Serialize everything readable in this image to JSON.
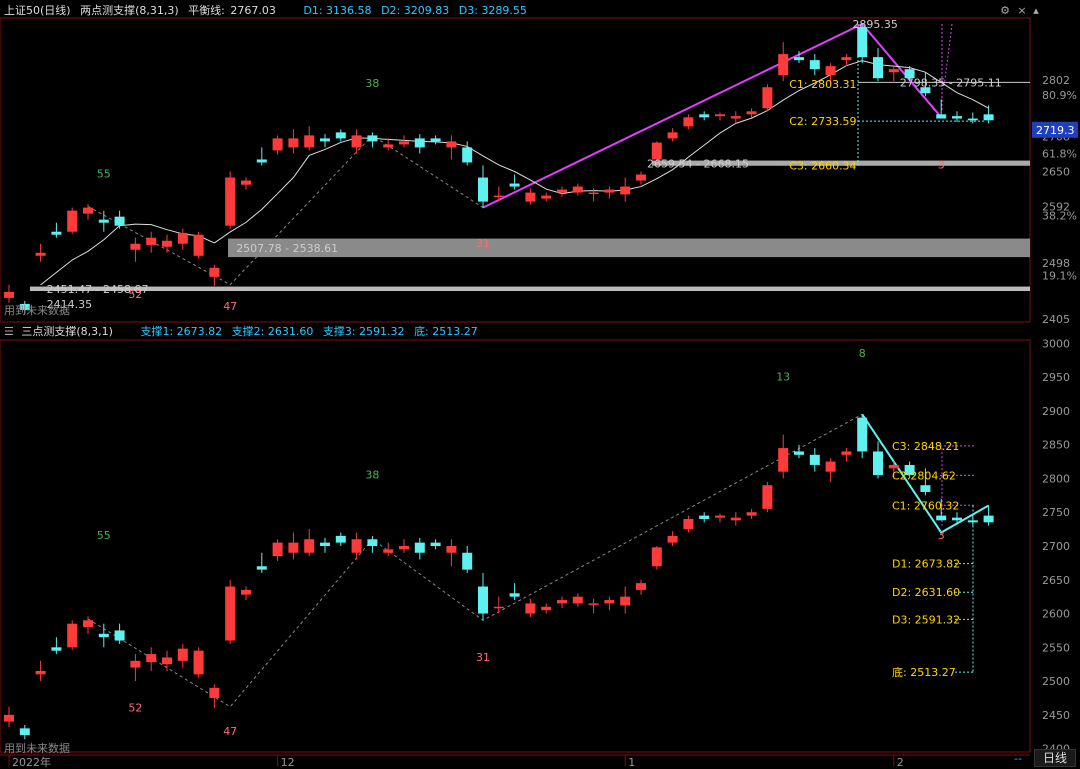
{
  "top_panel": {
    "title": "上证50(日线)",
    "indicator": "两点测支撑(8,31,3)",
    "balance_label": "平衡线:",
    "balance_value": "2767.03",
    "d1": "D1: 3136.58",
    "d2": "D2: 3209.83",
    "d3": "D3: 3289.55",
    "price_tag": "2719.3",
    "future_note": "用到未来数据",
    "axis_labels": [
      {
        "v": 2802,
        "text": "2802"
      },
      {
        "v": 2708,
        "text": "2708"
      },
      {
        "v": 2650,
        "text": "2650"
      },
      {
        "v": 2592,
        "text": "2592"
      },
      {
        "v": 2498,
        "text": "2498"
      },
      {
        "v": 2405,
        "text": "2405"
      }
    ],
    "fib_labels": [
      {
        "v": 2777,
        "text": "80.9%"
      },
      {
        "v": 2680,
        "text": "61.8%"
      },
      {
        "v": 2577,
        "text": "38.2%"
      },
      {
        "v": 2477,
        "text": "19.1%"
      }
    ],
    "annotations": [
      {
        "v": 2895.35,
        "i": 53,
        "text": "2895.35",
        "color": "#ccc"
      },
      {
        "v": 2798,
        "i": 56,
        "text": "2798.35 - 2795.11",
        "color": "#ccc"
      },
      {
        "v": 2795,
        "i": 49,
        "text": "C1: 2803.31",
        "color": "#ffd400"
      },
      {
        "v": 2733.59,
        "i": 49,
        "text": "C2: 2733.59",
        "color": "#ffd400"
      },
      {
        "v": 2660.34,
        "i": 49,
        "text": "C3: 2660.34",
        "color": "#ffd400"
      },
      {
        "v": 2663,
        "i": 40,
        "text": "2659.54 - 2668.15",
        "color": "#ccc"
      },
      {
        "v": 2523,
        "i": 14,
        "text": "2507.78 - 2538.61",
        "color": "#ccc"
      },
      {
        "v": 2455,
        "i": 2,
        "text": "2451.47 - 2458.87",
        "color": "#ccc"
      },
      {
        "v": 2430,
        "i": 2,
        "text": "2414.35",
        "color": "#ccc"
      }
    ],
    "counts": [
      {
        "i": 23,
        "v": 2790,
        "text": "38",
        "color": "#4caf50"
      },
      {
        "i": 6,
        "v": 2640,
        "text": "55",
        "color": "#4caf50"
      },
      {
        "i": 8,
        "v": 2440,
        "text": "52",
        "color": "#ff6b6b"
      },
      {
        "i": 14,
        "v": 2420,
        "text": "47",
        "color": "#ff6b6b"
      },
      {
        "i": 30,
        "v": 2525,
        "text": "31",
        "color": "#ff6b6b"
      },
      {
        "i": 59,
        "v": 2655,
        "text": "3",
        "color": "#ff6b6b"
      }
    ]
  },
  "bottom_panel": {
    "indicator": "三点测支撑(8,3,1)",
    "s1": "支撑1: 2673.82",
    "s2": "支撑2: 2631.60",
    "s3": "支撑3: 2591.32",
    "bottom": "底: 2513.27",
    "future_note": "用到未来数据",
    "axis_labels": [
      {
        "v": 3000,
        "text": "3000"
      },
      {
        "v": 2950,
        "text": "2950"
      },
      {
        "v": 2900,
        "text": "2900"
      },
      {
        "v": 2850,
        "text": "2850"
      },
      {
        "v": 2800,
        "text": "2800"
      },
      {
        "v": 2750,
        "text": "2750"
      },
      {
        "v": 2700,
        "text": "2700"
      },
      {
        "v": 2650,
        "text": "2650"
      },
      {
        "v": 2600,
        "text": "2600"
      },
      {
        "v": 2550,
        "text": "2550"
      },
      {
        "v": 2500,
        "text": "2500"
      },
      {
        "v": 2450,
        "text": "2450"
      },
      {
        "v": 2400,
        "text": "2400"
      }
    ],
    "annotations": [
      {
        "v": 2848.21,
        "text": "C3: 2848.21",
        "color": "#ffd400"
      },
      {
        "v": 2804.62,
        "text": "C2:2804.62",
        "color": "#ffd400"
      },
      {
        "v": 2760.32,
        "text": "C1: 2760.32",
        "color": "#ffd400"
      },
      {
        "v": 2673.82,
        "text": "D1: 2673.82",
        "color": "#ffd400"
      },
      {
        "v": 2631.6,
        "text": "D2: 2631.60",
        "color": "#ffd400"
      },
      {
        "v": 2591.32,
        "text": "D3: 2591.32",
        "color": "#ffd400"
      },
      {
        "v": 2513.27,
        "text": "底: 2513.27",
        "color": "#ffd400"
      }
    ],
    "counts": [
      {
        "i": 23,
        "v": 2800,
        "text": "38",
        "color": "#4caf50"
      },
      {
        "i": 6,
        "v": 2710,
        "text": "55",
        "color": "#4caf50"
      },
      {
        "i": 49,
        "v": 2945,
        "text": "13",
        "color": "#4caf50"
      },
      {
        "i": 54,
        "v": 2980,
        "text": "8",
        "color": "#4caf50"
      },
      {
        "i": 8,
        "v": 2455,
        "text": "52",
        "color": "#ff6b6b"
      },
      {
        "i": 14,
        "v": 2420,
        "text": "47",
        "color": "#ff6b6b"
      },
      {
        "i": 30,
        "v": 2530,
        "text": "31",
        "color": "#ff6b6b"
      },
      {
        "i": 59,
        "v": 2710,
        "text": "3",
        "color": "#ff6b6b"
      }
    ]
  },
  "time_axis": [
    {
      "i": 0,
      "text": "2022年"
    },
    {
      "i": 17,
      "text": "12"
    },
    {
      "i": 39,
      "text": "1"
    },
    {
      "i": 56,
      "text": "2"
    }
  ],
  "period_tab": "日线",
  "colors": {
    "up": "#ff3a3a",
    "down": "#5ff0f0",
    "ma": "#dddddd",
    "zigzag_top": "#e040fb",
    "zigzag_bottom": "#5ff0f0",
    "band": "#8a8a8a"
  },
  "candles": [
    {
      "o": 2440,
      "h": 2462,
      "l": 2432,
      "c": 2450
    },
    {
      "o": 2430,
      "h": 2435,
      "l": 2414,
      "c": 2420
    },
    {
      "o": 2510,
      "h": 2530,
      "l": 2500,
      "c": 2515
    },
    {
      "o": 2550,
      "h": 2565,
      "l": 2540,
      "c": 2545
    },
    {
      "o": 2550,
      "h": 2590,
      "l": 2546,
      "c": 2585
    },
    {
      "o": 2580,
      "h": 2596,
      "l": 2570,
      "c": 2590
    },
    {
      "o": 2570,
      "h": 2585,
      "l": 2550,
      "c": 2565
    },
    {
      "o": 2575,
      "h": 2585,
      "l": 2555,
      "c": 2560
    },
    {
      "o": 2520,
      "h": 2540,
      "l": 2500,
      "c": 2530
    },
    {
      "o": 2528,
      "h": 2550,
      "l": 2515,
      "c": 2540
    },
    {
      "o": 2525,
      "h": 2545,
      "l": 2515,
      "c": 2535
    },
    {
      "o": 2530,
      "h": 2555,
      "l": 2520,
      "c": 2548
    },
    {
      "o": 2510,
      "h": 2550,
      "l": 2505,
      "c": 2545
    },
    {
      "o": 2475,
      "h": 2495,
      "l": 2460,
      "c": 2490
    },
    {
      "o": 2560,
      "h": 2650,
      "l": 2555,
      "c": 2640
    },
    {
      "o": 2628,
      "h": 2640,
      "l": 2620,
      "c": 2635
    },
    {
      "o": 2670,
      "h": 2690,
      "l": 2660,
      "c": 2665
    },
    {
      "o": 2685,
      "h": 2710,
      "l": 2678,
      "c": 2705
    },
    {
      "o": 2690,
      "h": 2720,
      "l": 2680,
      "c": 2705
    },
    {
      "o": 2690,
      "h": 2725,
      "l": 2685,
      "c": 2710
    },
    {
      "o": 2705,
      "h": 2712,
      "l": 2690,
      "c": 2700
    },
    {
      "o": 2715,
      "h": 2720,
      "l": 2700,
      "c": 2705
    },
    {
      "o": 2690,
      "h": 2720,
      "l": 2680,
      "c": 2710
    },
    {
      "o": 2710,
      "h": 2715,
      "l": 2690,
      "c": 2700
    },
    {
      "o": 2690,
      "h": 2705,
      "l": 2685,
      "c": 2695
    },
    {
      "o": 2695,
      "h": 2710,
      "l": 2690,
      "c": 2700
    },
    {
      "o": 2705,
      "h": 2712,
      "l": 2680,
      "c": 2690
    },
    {
      "o": 2705,
      "h": 2710,
      "l": 2695,
      "c": 2700
    },
    {
      "o": 2690,
      "h": 2710,
      "l": 2670,
      "c": 2700
    },
    {
      "o": 2690,
      "h": 2700,
      "l": 2660,
      "c": 2665
    },
    {
      "o": 2640,
      "h": 2660,
      "l": 2590,
      "c": 2600
    },
    {
      "o": 2610,
      "h": 2625,
      "l": 2600,
      "c": 2610
    },
    {
      "o": 2630,
      "h": 2645,
      "l": 2620,
      "c": 2625
    },
    {
      "o": 2600,
      "h": 2622,
      "l": 2595,
      "c": 2615
    },
    {
      "o": 2605,
      "h": 2615,
      "l": 2600,
      "c": 2610
    },
    {
      "o": 2615,
      "h": 2625,
      "l": 2608,
      "c": 2620
    },
    {
      "o": 2615,
      "h": 2630,
      "l": 2610,
      "c": 2625
    },
    {
      "o": 2615,
      "h": 2622,
      "l": 2600,
      "c": 2615
    },
    {
      "o": 2615,
      "h": 2625,
      "l": 2605,
      "c": 2620
    },
    {
      "o": 2612,
      "h": 2640,
      "l": 2600,
      "c": 2625
    },
    {
      "o": 2635,
      "h": 2650,
      "l": 2628,
      "c": 2645
    },
    {
      "o": 2670,
      "h": 2700,
      "l": 2665,
      "c": 2698
    },
    {
      "o": 2705,
      "h": 2722,
      "l": 2700,
      "c": 2715
    },
    {
      "o": 2725,
      "h": 2745,
      "l": 2720,
      "c": 2740
    },
    {
      "o": 2745,
      "h": 2750,
      "l": 2735,
      "c": 2740
    },
    {
      "o": 2742,
      "h": 2748,
      "l": 2735,
      "c": 2745
    },
    {
      "o": 2738,
      "h": 2750,
      "l": 2730,
      "c": 2742
    },
    {
      "o": 2745,
      "h": 2755,
      "l": 2740,
      "c": 2750
    },
    {
      "o": 2755,
      "h": 2795,
      "l": 2750,
      "c": 2790
    },
    {
      "o": 2810,
      "h": 2865,
      "l": 2800,
      "c": 2845
    },
    {
      "o": 2840,
      "h": 2850,
      "l": 2830,
      "c": 2835
    },
    {
      "o": 2835,
      "h": 2845,
      "l": 2810,
      "c": 2820
    },
    {
      "o": 2810,
      "h": 2830,
      "l": 2795,
      "c": 2825
    },
    {
      "o": 2835,
      "h": 2845,
      "l": 2825,
      "c": 2840
    },
    {
      "o": 2890,
      "h": 2895,
      "l": 2830,
      "c": 2840
    },
    {
      "o": 2840,
      "h": 2855,
      "l": 2800,
      "c": 2805
    },
    {
      "o": 2815,
      "h": 2825,
      "l": 2800,
      "c": 2820
    },
    {
      "o": 2820,
      "h": 2825,
      "l": 2800,
      "c": 2805
    },
    {
      "o": 2790,
      "h": 2815,
      "l": 2775,
      "c": 2780
    },
    {
      "o": 2745,
      "h": 2770,
      "l": 2738,
      "c": 2738
    },
    {
      "o": 2742,
      "h": 2750,
      "l": 2732,
      "c": 2738
    },
    {
      "o": 2738,
      "h": 2748,
      "l": 2730,
      "c": 2735
    },
    {
      "o": 2745,
      "h": 2760,
      "l": 2730,
      "c": 2735
    }
  ]
}
